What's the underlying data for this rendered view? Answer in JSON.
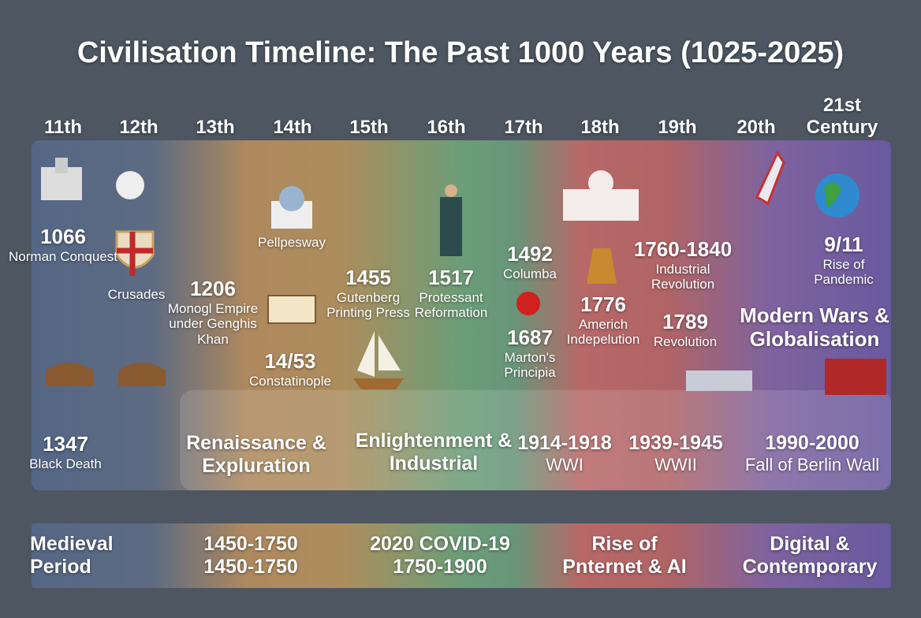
{
  "title": "Civilisation Timeline: The Past 1000 Years (1025-2025)",
  "centuries": [
    "11th",
    "12th",
    "13th",
    "14th",
    "15th",
    "16th",
    "17th",
    "18th",
    "19th",
    "20th",
    "21st Century"
  ],
  "events": [
    {
      "date": "1066",
      "label": "Norman Conquest"
    },
    {
      "label": "Crusades"
    },
    {
      "date": "1206",
      "label": "Monogl Empire under Genghis Khan"
    },
    {
      "label": "Pellpesway"
    },
    {
      "date": "14/53",
      "label": "Constatinople"
    },
    {
      "date": "1455",
      "label": "Gutenberg Printing Press"
    },
    {
      "date": "1517",
      "label": "Protessant Reformation"
    },
    {
      "date": "1492",
      "label": "Columba"
    },
    {
      "date": "1687",
      "label": "Marton's Principia"
    },
    {
      "date": "1776",
      "label": "Americh Indepelution"
    },
    {
      "date": "1760-1840",
      "label": "Industrial Revolution"
    },
    {
      "date": "1789",
      "label": "Revolution"
    },
    {
      "date": "9/11",
      "label": "Rise of Pandemic"
    },
    {
      "date": "Modern Wars & Globalisation"
    },
    {
      "date": "1347",
      "label": "Black Death"
    }
  ],
  "eras": [
    {
      "date": "Renaissance & Expluration"
    },
    {
      "date": "Enlightenment & Industrial"
    },
    {
      "date": "1914-1918",
      "label": "WWI"
    },
    {
      "date": "1939-1945",
      "label": "WWII"
    },
    {
      "date": "1990-2000",
      "label": "Fall of Berlin Wall"
    }
  ],
  "periods": [
    "Medieval Period",
    "1450-1750 1450-1750",
    "2020 COVID-19 1750-1900",
    "Rise of Pnternet & AI",
    "Digital & Contemporary"
  ]
}
